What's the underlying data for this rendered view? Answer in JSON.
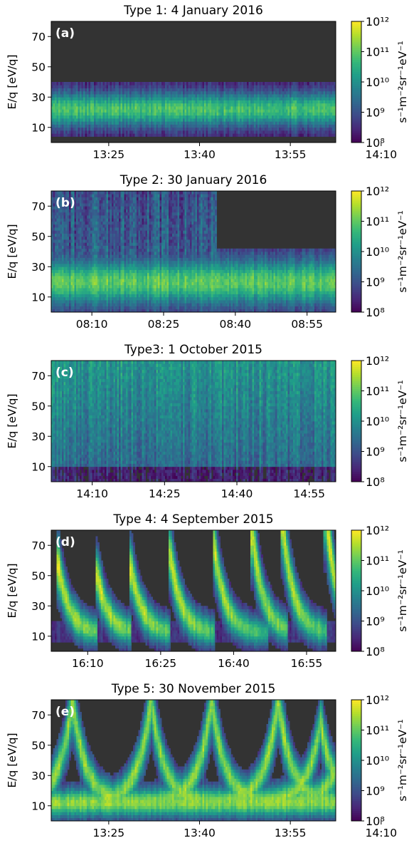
{
  "chart_data": [
    {
      "type": "heatmap",
      "panel_label": "(a)",
      "title": "Type 1: 4 January 2016",
      "ylabel": "E/q [eV/q]",
      "yticks": [
        10,
        30,
        50,
        70
      ],
      "ylim": [
        0,
        80
      ],
      "xticks": [
        "13:25",
        "13:40",
        "13:55",
        "14:10"
      ],
      "xlim_minutes": [
        13.5,
        60.5
      ],
      "xtick_minutes": [
        23,
        38,
        53,
        68
      ],
      "colorbar": {
        "label": "s⁻¹m⁻²sr⁻¹eV⁻¹",
        "ticks": [
          "10⁸",
          "10⁹",
          "10¹⁰",
          "10¹¹",
          "10¹²"
        ],
        "range_log10": [
          8,
          12
        ]
      },
      "pattern": "band",
      "band_center_eVq": 22,
      "band_width_eVq": 8,
      "band_peak_log10": 10.8
    },
    {
      "type": "heatmap",
      "panel_label": "(b)",
      "title": "Type 2: 30 January 2016",
      "ylabel": "E/q [eV/q]",
      "yticks": [
        10,
        30,
        50,
        70
      ],
      "ylim": [
        0,
        80
      ],
      "xticks": [
        "08:10",
        "08:25",
        "08:40",
        "08:55"
      ],
      "xlim_minutes": [
        1.5,
        61
      ],
      "xtick_minutes": [
        10,
        25,
        40,
        55
      ],
      "colorbar": {
        "label": "s⁻¹m⁻²sr⁻¹eV⁻¹",
        "ticks": [
          "10⁸",
          "10⁹",
          "10¹⁰",
          "10¹¹",
          "10¹²"
        ],
        "range_log10": [
          8,
          12
        ]
      },
      "pattern": "band_with_highenergy_tail_until",
      "band_center_eVq": 20,
      "band_width_eVq": 10,
      "band_peak_log10": 11.0,
      "tail_until_minute": 36
    },
    {
      "type": "heatmap",
      "panel_label": "(c)",
      "title": "Type3: 1 October 2015",
      "ylabel": "E/q [eV/q]",
      "yticks": [
        10,
        30,
        50,
        70
      ],
      "ylim": [
        0,
        80
      ],
      "xticks": [
        "14:10",
        "14:25",
        "14:40",
        "14:55"
      ],
      "xlim_minutes": [
        1.5,
        60.5
      ],
      "xtick_minutes": [
        10,
        25,
        40,
        55
      ],
      "colorbar": {
        "label": "s⁻¹m⁻²sr⁻¹eV⁻¹",
        "ticks": [
          "10⁸",
          "10⁹",
          "10¹⁰",
          "10¹¹",
          "10¹²"
        ],
        "range_log10": [
          8,
          12
        ]
      },
      "pattern": "broad_high_energy",
      "band_peak_log10": 10.3
    },
    {
      "type": "heatmap",
      "panel_label": "(d)",
      "title": "Type 4: 4 September 2015",
      "ylabel": "E/q [eV/q]",
      "yticks": [
        10,
        30,
        50,
        70
      ],
      "ylim": [
        0,
        80
      ],
      "xticks": [
        "16:10",
        "16:25",
        "16:40",
        "16:55"
      ],
      "xlim_minutes": [
        2.5,
        61
      ],
      "xtick_minutes": [
        10,
        25,
        40,
        55
      ],
      "colorbar": {
        "label": "s⁻¹m⁻²sr⁻¹eV⁻¹",
        "ticks": [
          "10⁸",
          "10⁹",
          "10¹⁰",
          "10¹¹",
          "10¹²"
        ],
        "range_log10": [
          8,
          12
        ]
      },
      "pattern": "periodic_dispersion",
      "event_minutes": [
        4,
        12,
        19,
        27,
        36,
        44,
        50,
        59
      ],
      "event_start_eVq": [
        45,
        38,
        42,
        52,
        58,
        62,
        75,
        80
      ],
      "event_decay_minutes": [
        7,
        6,
        7,
        8,
        10,
        6,
        8,
        3
      ],
      "band_peak_log10": 11.7
    },
    {
      "type": "heatmap",
      "panel_label": "(e)",
      "title": "Type 5: 30 November 2015",
      "ylabel": "E/q [eV/q]",
      "yticks": [
        10,
        30,
        50,
        70
      ],
      "ylim": [
        0,
        80
      ],
      "xticks": [
        "13:25",
        "13:40",
        "13:55",
        "14:10"
      ],
      "xlim_minutes": [
        13.5,
        60.5
      ],
      "xtick_minutes": [
        23,
        38,
        53,
        68
      ],
      "colorbar": {
        "label": "s⁻¹m⁻²sr⁻¹eV⁻¹",
        "ticks": [
          "10⁸",
          "10⁹",
          "10¹⁰",
          "10¹¹",
          "10¹²"
        ],
        "range_log10": [
          8,
          12
        ]
      },
      "pattern": "symmetric_vshapes",
      "event_minutes": [
        17,
        30,
        40,
        51,
        58,
        63
      ],
      "event_peak_eVq": [
        80,
        80,
        80,
        80,
        65,
        80
      ],
      "band_peak_log10": 11.3
    }
  ]
}
